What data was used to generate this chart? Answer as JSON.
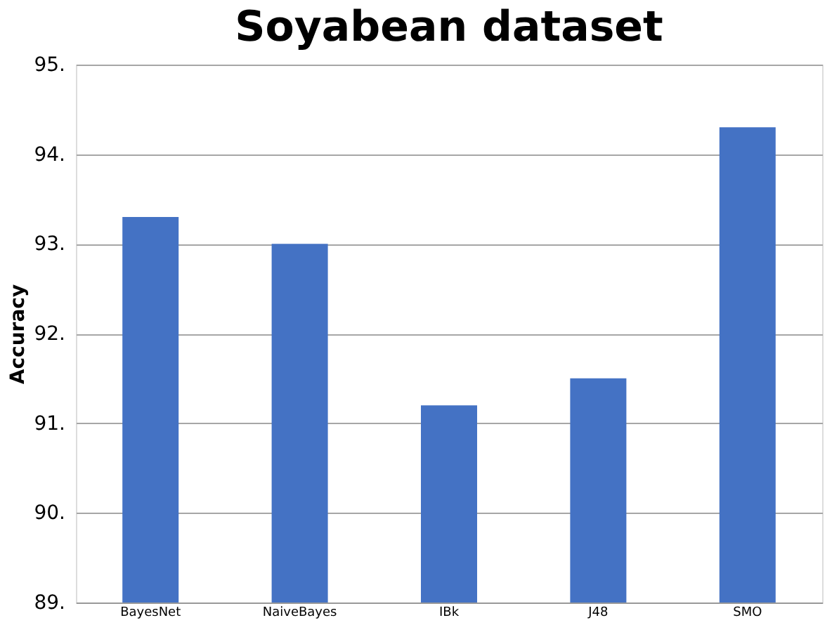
{
  "chart_data": {
    "type": "bar",
    "title": "Soyabean dataset",
    "ylabel": "Accuracy",
    "categories": [
      "BayesNet",
      "NaiveBayes",
      "IBk",
      "J48",
      "SMO"
    ],
    "values": [
      93.3,
      93.0,
      91.2,
      91.5,
      94.3
    ],
    "color": "#4472c4",
    "ylim": [
      89,
      95
    ],
    "yticks": [
      {
        "value": 89,
        "label": "89."
      },
      {
        "value": 90,
        "label": "90."
      },
      {
        "value": 91,
        "label": "91."
      },
      {
        "value": 92,
        "label": "92."
      },
      {
        "value": 93,
        "label": "93."
      },
      {
        "value": 94,
        "label": "94."
      },
      {
        "value": 95,
        "label": "95."
      }
    ],
    "grid": "y"
  }
}
